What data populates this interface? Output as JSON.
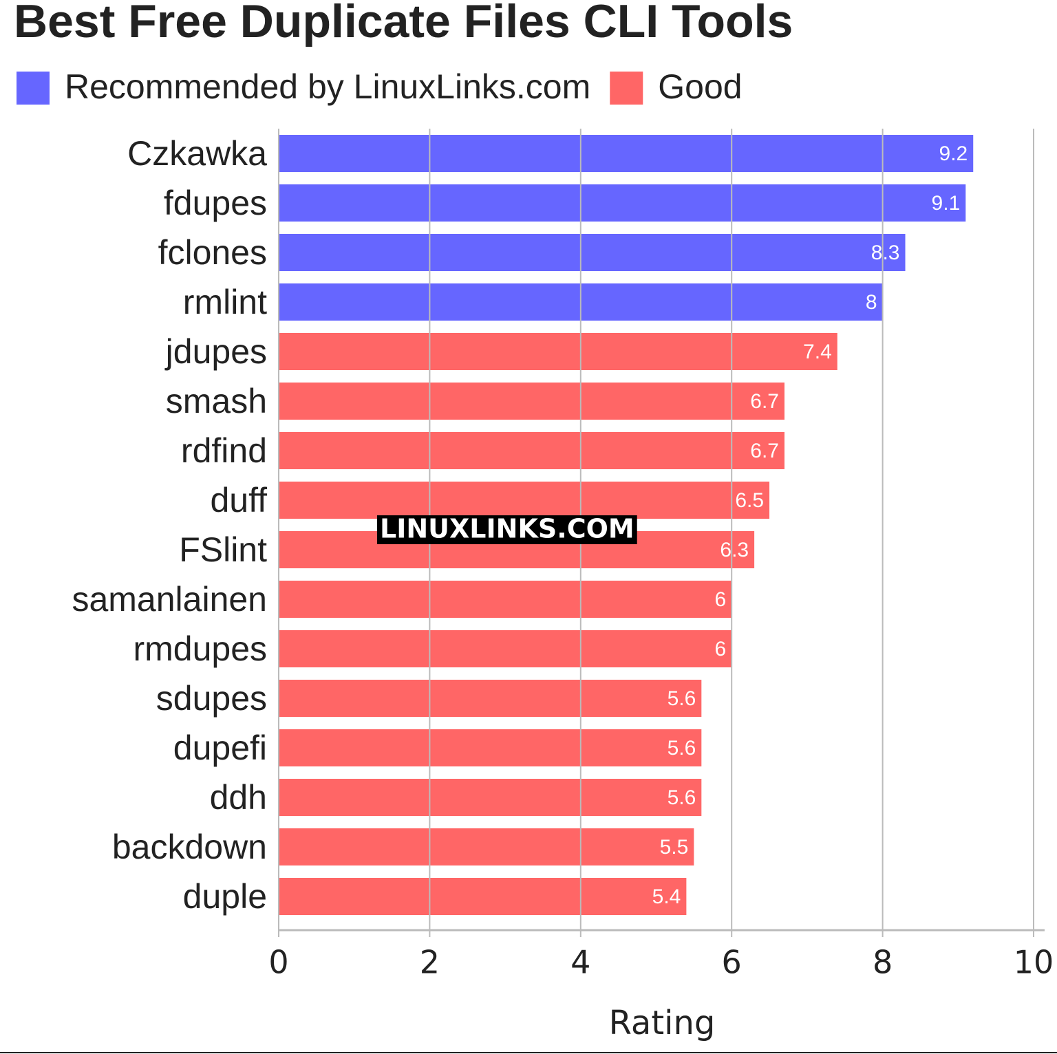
{
  "chart_data": {
    "type": "bar",
    "orientation": "horizontal",
    "title": "Best Free Duplicate Files CLI Tools",
    "categories": [
      "Czkawka",
      "fdupes",
      "fclones",
      "rmlint",
      "jdupes",
      "smash",
      "rdfind",
      "duff",
      "FSlint",
      "samanlainen",
      "rmdupes",
      "sdupes",
      "dupefi",
      "ddh",
      "backdown",
      "duple"
    ],
    "series": [
      {
        "name": "Recommended by LinuxLinks.com",
        "color": "#6666ff",
        "values": [
          9.2,
          9.1,
          8.3,
          8,
          null,
          null,
          null,
          null,
          null,
          null,
          null,
          null,
          null,
          null,
          null,
          null
        ]
      },
      {
        "name": "Good",
        "color": "#ff6666",
        "values": [
          null,
          null,
          null,
          null,
          7.4,
          6.7,
          6.7,
          6.5,
          6.3,
          6,
          6,
          5.6,
          5.6,
          5.6,
          5.5,
          5.4
        ]
      }
    ],
    "xlabel": "Rating",
    "xlim": [
      0,
      10
    ],
    "xticks": [
      0,
      2,
      4,
      6,
      8,
      10
    ],
    "grid": true,
    "legend": "top-left",
    "watermark": "LINUXLINKS.COM"
  }
}
